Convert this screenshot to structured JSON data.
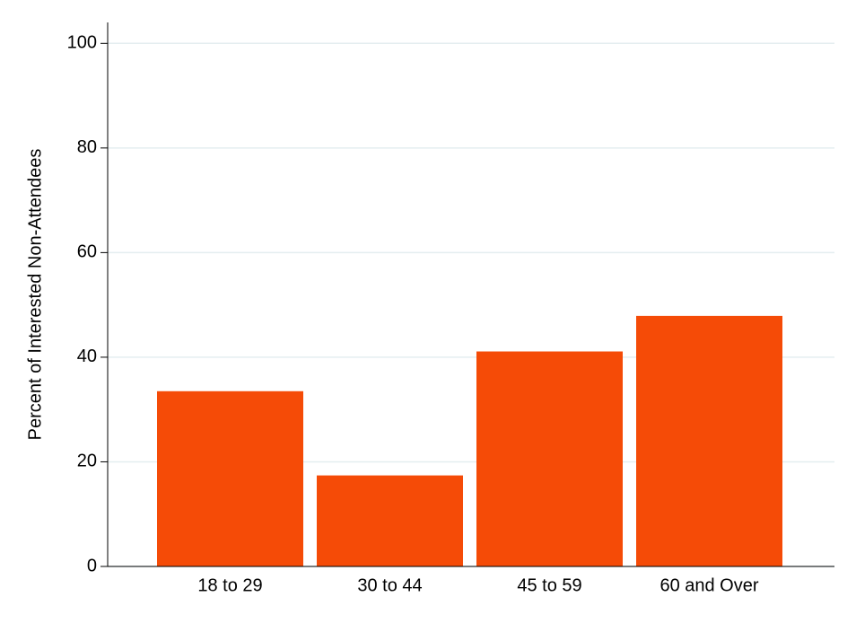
{
  "chart_data": {
    "type": "bar",
    "y_label": "Percent of Interested Non-Attendees",
    "categories": [
      "18 to 29",
      "30 to 44",
      "45 to 59",
      "60 and Over"
    ],
    "values": [
      33.5,
      17.4,
      41.1,
      47.9
    ],
    "color": "#f54b07",
    "ylim": [
      0,
      104
    ],
    "yticks": [
      0,
      20,
      40,
      60,
      80,
      100
    ],
    "grid": true
  }
}
